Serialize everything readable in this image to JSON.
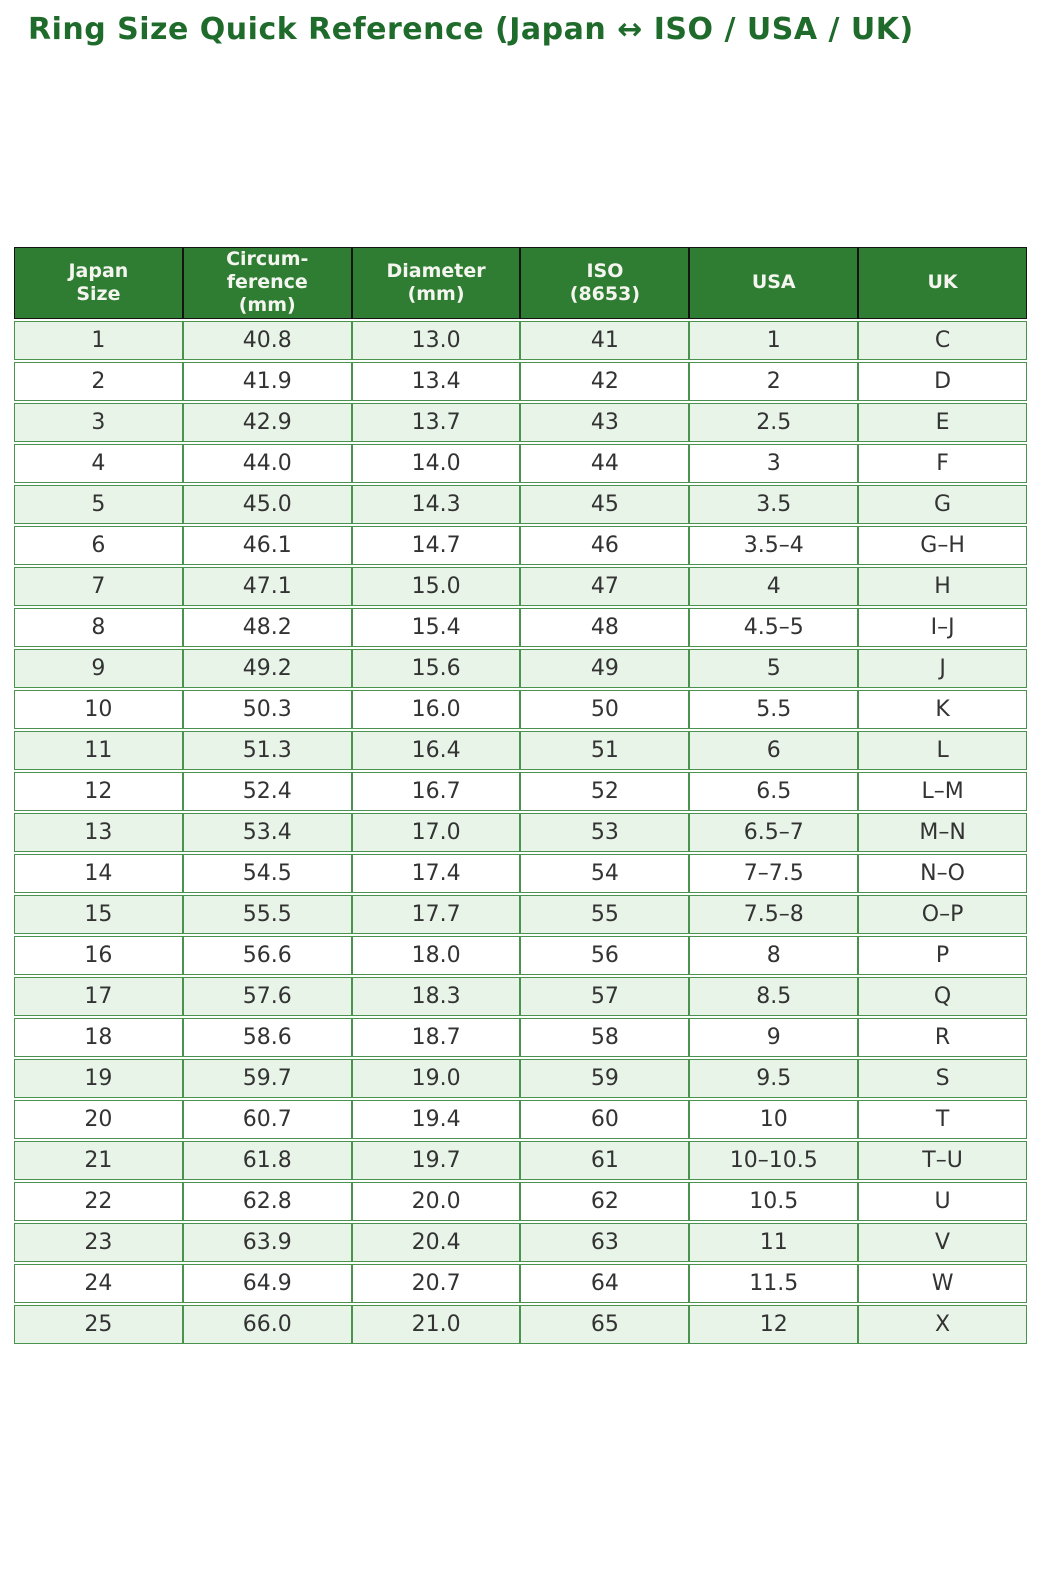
{
  "page": {
    "title": "Ring Size Quick Reference (Japan ↔ ISO / USA / UK)"
  },
  "colors": {
    "title_text": "#1e6b2b",
    "header_bg": "#2e7d32",
    "header_text": "#f5f5f0",
    "header_border": "#141414",
    "row_alt_bg": "#e9f4e9",
    "row_bg": "#ffffff",
    "cell_border": "#4a934e",
    "cell_text": "#333333"
  },
  "chart_data": {
    "type": "table",
    "title": "Ring Size Quick Reference (Japan ↔ ISO / USA / UK)",
    "columns": [
      "Japan\nSize",
      "Circum-\nference\n(mm)",
      "Diameter\n(mm)",
      "ISO\n(8653)",
      "USA",
      "UK"
    ],
    "rows": [
      [
        "1",
        "40.8",
        "13.0",
        "41",
        "1",
        "C"
      ],
      [
        "2",
        "41.9",
        "13.4",
        "42",
        "2",
        "D"
      ],
      [
        "3",
        "42.9",
        "13.7",
        "43",
        "2.5",
        "E"
      ],
      [
        "4",
        "44.0",
        "14.0",
        "44",
        "3",
        "F"
      ],
      [
        "5",
        "45.0",
        "14.3",
        "45",
        "3.5",
        "G"
      ],
      [
        "6",
        "46.1",
        "14.7",
        "46",
        "3.5–4",
        "G–H"
      ],
      [
        "7",
        "47.1",
        "15.0",
        "47",
        "4",
        "H"
      ],
      [
        "8",
        "48.2",
        "15.4",
        "48",
        "4.5–5",
        "I–J"
      ],
      [
        "9",
        "49.2",
        "15.6",
        "49",
        "5",
        "J"
      ],
      [
        "10",
        "50.3",
        "16.0",
        "50",
        "5.5",
        "K"
      ],
      [
        "11",
        "51.3",
        "16.4",
        "51",
        "6",
        "L"
      ],
      [
        "12",
        "52.4",
        "16.7",
        "52",
        "6.5",
        "L–M"
      ],
      [
        "13",
        "53.4",
        "17.0",
        "53",
        "6.5–7",
        "M–N"
      ],
      [
        "14",
        "54.5",
        "17.4",
        "54",
        "7–7.5",
        "N–O"
      ],
      [
        "15",
        "55.5",
        "17.7",
        "55",
        "7.5–8",
        "O–P"
      ],
      [
        "16",
        "56.6",
        "18.0",
        "56",
        "8",
        "P"
      ],
      [
        "17",
        "57.6",
        "18.3",
        "57",
        "8.5",
        "Q"
      ],
      [
        "18",
        "58.6",
        "18.7",
        "58",
        "9",
        "R"
      ],
      [
        "19",
        "59.7",
        "19.0",
        "59",
        "9.5",
        "S"
      ],
      [
        "20",
        "60.7",
        "19.4",
        "60",
        "10",
        "T"
      ],
      [
        "21",
        "61.8",
        "19.7",
        "61",
        "10–10.5",
        "T–U"
      ],
      [
        "22",
        "62.8",
        "20.0",
        "62",
        "10.5",
        "U"
      ],
      [
        "23",
        "63.9",
        "20.4",
        "63",
        "11",
        "V"
      ],
      [
        "24",
        "64.9",
        "20.7",
        "64",
        "11.5",
        "W"
      ],
      [
        "25",
        "66.0",
        "21.0",
        "65",
        "12",
        "X"
      ]
    ]
  }
}
